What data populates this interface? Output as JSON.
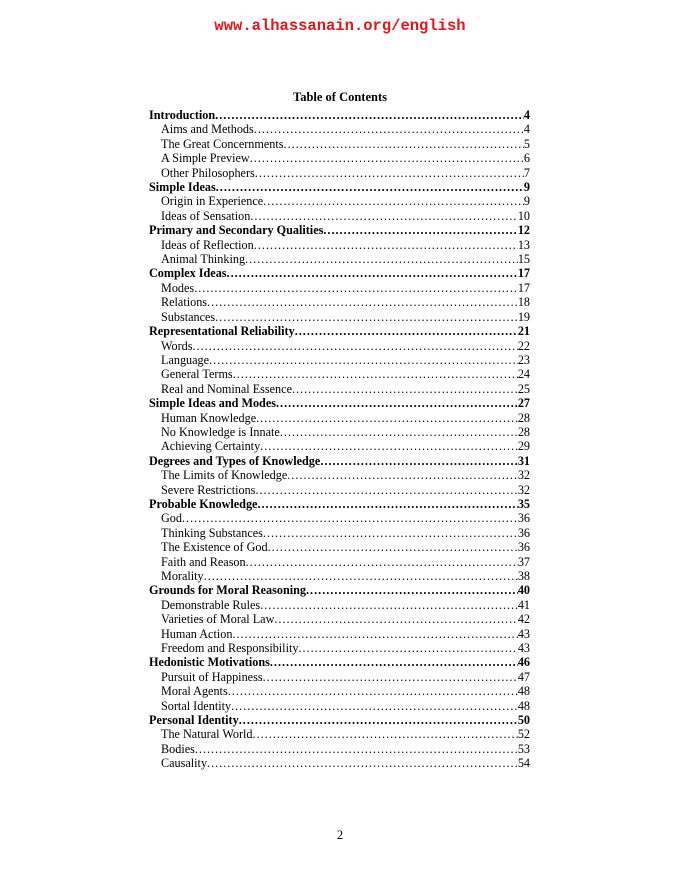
{
  "header": {
    "site": "www.alhassanain.org/english"
  },
  "title": "Table of Contents",
  "entries": [
    {
      "label": "Introduction",
      "page": "4",
      "level": 1
    },
    {
      "label": "Aims and Methods",
      "page": "4",
      "level": 2
    },
    {
      "label": "The Great Concernments",
      "page": "5",
      "level": 2
    },
    {
      "label": "A Simple Preview",
      "page": "6",
      "level": 2
    },
    {
      "label": "Other Philosophers",
      "page": "7",
      "level": 2
    },
    {
      "label": "Simple Ideas",
      "page": "9",
      "level": 1
    },
    {
      "label": "Origin in Experience",
      "page": "9",
      "level": 2
    },
    {
      "label": "Ideas of Sensation",
      "page": "10",
      "level": 2
    },
    {
      "label": "Primary and Secondary Qualities",
      "page": "12",
      "level": 1
    },
    {
      "label": "Ideas of Reflection",
      "page": "13",
      "level": 2
    },
    {
      "label": "Animal Thinking",
      "page": "15",
      "level": 2
    },
    {
      "label": "Complex Ideas",
      "page": "17",
      "level": 1
    },
    {
      "label": "Modes",
      "page": "17",
      "level": 2
    },
    {
      "label": "Relations",
      "page": "18",
      "level": 2
    },
    {
      "label": "Substances",
      "page": "19",
      "level": 2
    },
    {
      "label": "Representational Reliability",
      "page": "21",
      "level": 1
    },
    {
      "label": "Words",
      "page": "22",
      "level": 2
    },
    {
      "label": "Language",
      "page": "23",
      "level": 2
    },
    {
      "label": "General Terms",
      "page": "24",
      "level": 2
    },
    {
      "label": "Real and Nominal Essence",
      "page": "25",
      "level": 2
    },
    {
      "label": "Simple Ideas and Modes",
      "page": "27",
      "level": 1
    },
    {
      "label": "Human Knowledge",
      "page": "28",
      "level": 2
    },
    {
      "label": "No Knowledge is Innate",
      "page": "28",
      "level": 2
    },
    {
      "label": "Achieving Certainty",
      "page": "29",
      "level": 2
    },
    {
      "label": "Degrees and Types of Knowledge",
      "page": "31",
      "level": 1
    },
    {
      "label": "The Limits of Knowledge",
      "page": "32",
      "level": 2
    },
    {
      "label": "Severe Restrictions",
      "page": "32",
      "level": 2
    },
    {
      "label": "Probable Knowledge",
      "page": "35",
      "level": 1
    },
    {
      "label": "God",
      "page": "36",
      "level": 2
    },
    {
      "label": "Thinking Substances",
      "page": "36",
      "level": 2
    },
    {
      "label": "The Existence of God",
      "page": "36",
      "level": 2
    },
    {
      "label": "Faith and Reason",
      "page": "37",
      "level": 2
    },
    {
      "label": "Morality",
      "page": "38",
      "level": 2
    },
    {
      "label": "Grounds for Moral Reasoning",
      "page": "40",
      "level": 1
    },
    {
      "label": "Demonstrable Rules",
      "page": "41",
      "level": 2
    },
    {
      "label": "Varieties of Moral Law",
      "page": "42",
      "level": 2
    },
    {
      "label": "Human Action",
      "page": "43",
      "level": 2
    },
    {
      "label": "Freedom and Responsibility",
      "page": "43",
      "level": 2
    },
    {
      "label": "Hedonistic Motivations",
      "page": "46",
      "level": 1
    },
    {
      "label": "Pursuit of Happiness",
      "page": "47",
      "level": 2
    },
    {
      "label": "Moral Agents",
      "page": "48",
      "level": 2
    },
    {
      "label": "Sortal Identity",
      "page": "48",
      "level": 2
    },
    {
      "label": "Personal Identity",
      "page": "50",
      "level": 1
    },
    {
      "label": "The Natural World",
      "page": "52",
      "level": 2
    },
    {
      "label": "Bodies",
      "page": "53",
      "level": 2
    },
    {
      "label": "Causality",
      "page": "54",
      "level": 2
    }
  ],
  "footer": {
    "page_number": "2"
  },
  "colors": {
    "site_header": "#e8141b",
    "text": "#000000"
  }
}
